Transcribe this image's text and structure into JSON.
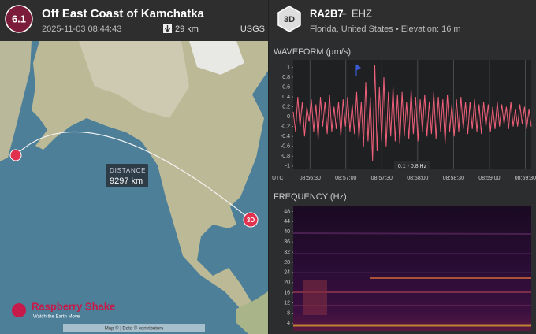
{
  "event": {
    "magnitude": "6.1",
    "title": "Off East Coast of Kamchatka",
    "time": "2025-11-03 08:44:43",
    "depth": "29 km",
    "source": "USGS"
  },
  "station": {
    "badge": "3D",
    "name": "RA2B7",
    "separator": "–",
    "channel": "EHZ",
    "location": "Florida, United States • Elevation: 16 m"
  },
  "map": {
    "distance_label": "DISTANCE",
    "distance": "9297 km",
    "station_marker": "3D",
    "logo": "Raspberry Shake",
    "tagline": "Watch the Earth Move",
    "attribution": "Map © | Data © contributors"
  },
  "chart_data": [
    {
      "type": "line",
      "title": "WAVEFORM (µm/s)",
      "x_label": "UTC",
      "annotation": "0.1 - 0.8 Hz",
      "color": "#f0607a",
      "grid": true,
      "ylim": [
        -1.05,
        1.15
      ],
      "yticks": [
        1,
        0.8,
        0.6,
        0.4,
        0.2,
        0,
        -0.2,
        -0.4,
        -0.6,
        -0.8,
        -1
      ],
      "xlim": [
        32176,
        32375
      ],
      "xticks": [
        {
          "value": 32190,
          "label": "08:56:30"
        },
        {
          "value": 32220,
          "label": "08:57:00"
        },
        {
          "value": 32250,
          "label": "08:57:30"
        },
        {
          "value": 32280,
          "label": "08:58:00"
        },
        {
          "value": 32310,
          "label": "08:58:30"
        },
        {
          "value": 32340,
          "label": "08:59:00"
        },
        {
          "value": 32370,
          "label": "08:59:30"
        }
      ],
      "values": [
        0.1,
        -0.3,
        0.4,
        -0.2,
        0.3,
        -0.4,
        0.2,
        -0.1,
        0.35,
        -0.3,
        0.25,
        -0.45,
        0.4,
        -0.2,
        0.3,
        -0.35,
        0.45,
        -0.3,
        0.2,
        -0.25,
        0.3,
        -0.4,
        0.35,
        -0.2,
        0.4,
        -0.3,
        0.25,
        -0.35,
        0.5,
        -0.45,
        0.3,
        -0.6,
        0.7,
        -0.5,
        0.4,
        -0.9,
        1.05,
        -0.7,
        0.6,
        -0.5,
        0.8,
        -0.6,
        0.5,
        -0.4,
        0.6,
        -0.5,
        0.45,
        -0.55,
        0.5,
        -0.4,
        0.3,
        -0.45,
        0.55,
        -0.35,
        0.4,
        -0.5,
        0.35,
        -0.3,
        0.45,
        -0.4,
        0.3,
        -0.35,
        0.5,
        -0.45,
        0.4,
        -0.3,
        0.35,
        -0.55,
        0.45,
        -0.3,
        0.25,
        -0.4,
        0.35,
        -0.3,
        0.4,
        -0.25,
        0.3,
        -0.35,
        0.3,
        -0.25,
        0.35,
        -0.3,
        0.25,
        -0.35,
        0.3,
        -0.2,
        0.25,
        -0.3,
        0.2,
        -0.25,
        0.3,
        -0.2,
        0.25,
        -0.15,
        0.2,
        -0.25,
        0.3,
        -0.2,
        0.15,
        -0.2,
        0.25,
        -0.15,
        0.2,
        -0.25,
        0.15,
        -0.2
      ]
    },
    {
      "type": "spectrogram",
      "title": "FREQUENCY (Hz)",
      "ylim": [
        1,
        50
      ],
      "yticks": [
        48,
        44,
        40,
        36,
        32,
        28,
        24,
        20,
        16,
        12,
        8,
        4
      ]
    }
  ]
}
